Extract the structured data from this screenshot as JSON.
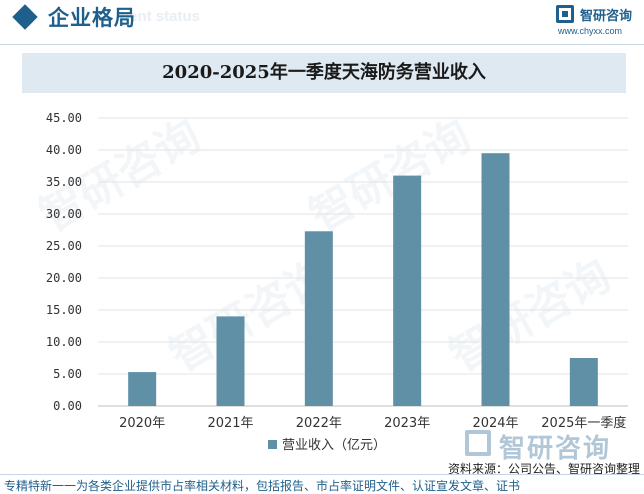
{
  "header": {
    "section_title": "企业格局",
    "ghost_text": "nent status",
    "brand": "智研咨询",
    "url": "www.chyxx.com"
  },
  "chart_data": {
    "type": "bar",
    "title": "2020-2025年一季度天海防务营业收入",
    "categories": [
      "2020年",
      "2021年",
      "2022年",
      "2023年",
      "2024年",
      "2025年一季度"
    ],
    "series": [
      {
        "name": "营业收入（亿元）",
        "values": [
          5.3,
          14.0,
          27.3,
          36.0,
          39.5,
          7.5
        ]
      }
    ],
    "ylim": [
      0,
      45
    ],
    "yticks": [
      "45.00",
      "40.00",
      "35.00",
      "30.00",
      "25.00",
      "20.00",
      "15.00",
      "10.00",
      "5.00",
      "0.00"
    ],
    "ytick_values": [
      45,
      40,
      35,
      30,
      25,
      20,
      15,
      10,
      5,
      0
    ],
    "grid": true,
    "legend_position": "bottom",
    "bar_color": "#5f90a6"
  },
  "watermark": {
    "brand": "智研咨询"
  },
  "source": "资料来源：公司公告、智研咨询整理",
  "footer_note": "专精特新一一为各类企业提供市占率相关材料，包括报告、市占率证明文件、认证宣发文章、证书"
}
